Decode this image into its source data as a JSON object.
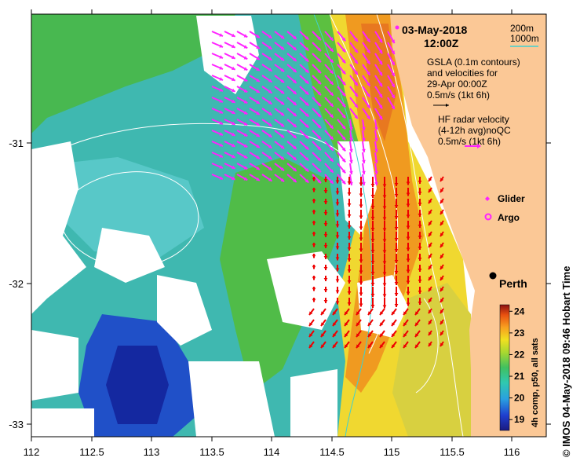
{
  "title": {
    "date": "03-May-2018",
    "time": "12:00Z"
  },
  "depth_legend": {
    "contour_200": "200m",
    "contour_1000": "1000m",
    "color_1000": "#40d0d0"
  },
  "gsla_note": {
    "line1": "GSLA (0.1m contours)",
    "line2": "and velocities for",
    "line3": "29-Apr 00:00Z",
    "scale": "0.5m/s (1kt 6h)"
  },
  "hf_note": {
    "line1": "HF radar velocity",
    "line2": "(4-12h avg)noQC",
    "scale": "0.5m/s (1kt 6h)",
    "color": "#ff22ff"
  },
  "markers": {
    "glider_label": "Glider",
    "argo_label": "Argo",
    "city": "Perth"
  },
  "x_axis": {
    "ticks": [
      "112",
      "112.5",
      "113",
      "113.5",
      "114",
      "114.5",
      "115",
      "115.5",
      "116"
    ]
  },
  "y_axis": {
    "ticks": [
      "-31",
      "-32",
      "-33"
    ]
  },
  "colorbar": {
    "label": "4h comp, p50, all sats",
    "ticks": [
      "24",
      "23",
      "22",
      "21",
      "20",
      "19"
    ],
    "range": [
      18.5,
      24.3
    ]
  },
  "credit": "© IMOS 04-May-2018 09:46 Hobart Time",
  "colors": {
    "land": "#fbc896",
    "magenta": "#ff22ff",
    "red": "#ee0000",
    "cyan_contour": "#40d0d0"
  }
}
